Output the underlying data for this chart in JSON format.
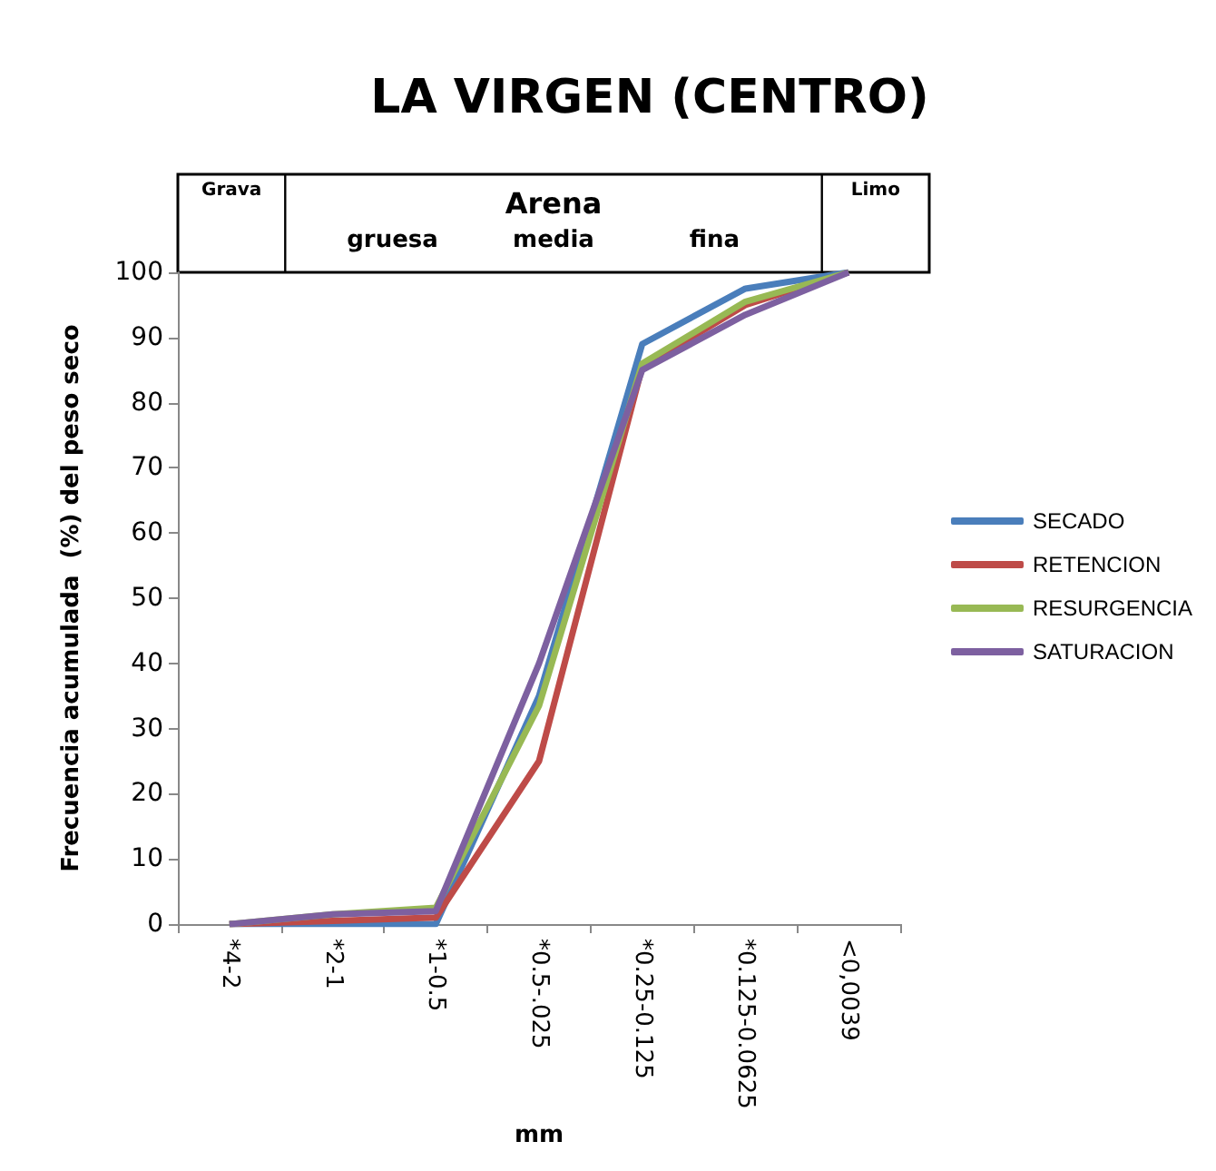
{
  "chart_data": {
    "type": "line",
    "title": "LA VIRGEN (CENTRO)",
    "xlabel": "mm",
    "ylabel": "Frecuencia acumulada  (%) del peso seco",
    "categories": [
      "*4-2",
      "*2-1",
      "*1-0.5",
      "*0.5-.025",
      "*0.25-0.125",
      "*0.125-0.0625",
      "<0,0039"
    ],
    "series": [
      {
        "name": "SECADO",
        "color": "#4a7ebb",
        "values": [
          0,
          0,
          0,
          35,
          89,
          97.5,
          100
        ]
      },
      {
        "name": "RETENCION",
        "color": "#be4b48",
        "values": [
          0,
          0.5,
          1,
          25,
          85.5,
          95,
          100
        ]
      },
      {
        "name": "RESURGENCIA",
        "color": "#98b954",
        "values": [
          0,
          1.5,
          2.5,
          33.5,
          86,
          95.5,
          100
        ]
      },
      {
        "name": "SATURACION",
        "color": "#7d60a0",
        "values": [
          0,
          1.5,
          2,
          40,
          85,
          93.5,
          100
        ]
      }
    ],
    "ylim": [
      0,
      100
    ],
    "yticks": [
      0,
      10,
      20,
      30,
      40,
      50,
      60,
      70,
      80,
      90,
      100
    ],
    "grid": false,
    "legend": "right",
    "marker": "none",
    "line_style": "solid",
    "annotations": [
      "Grava",
      "Arena",
      "gruesa",
      "media",
      "fina",
      "Limo"
    ]
  }
}
